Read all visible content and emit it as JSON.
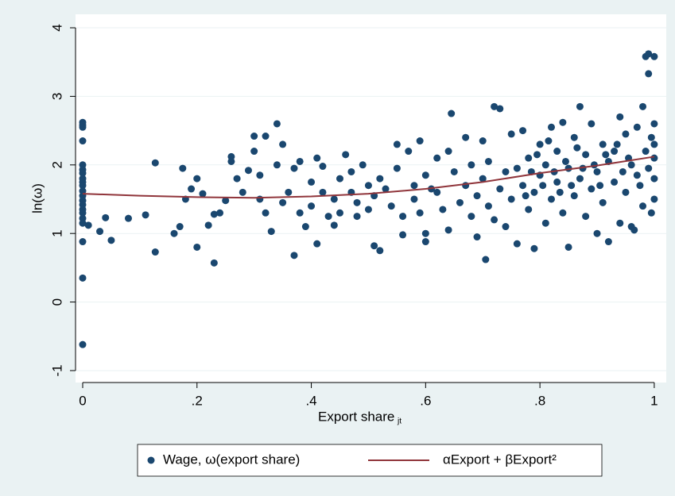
{
  "chart_data": {
    "type": "scatter",
    "x_label": "Export share",
    "x_label_subscript": "jt",
    "y_label": "ln(ω)",
    "xlim": [
      -0.0125,
      1.021
    ],
    "ylim": [
      -1.174,
      4.197
    ],
    "xticks": [
      0,
      {
        "value": 0.2,
        "label": ".2"
      },
      {
        "value": 0.4,
        "label": ".4"
      },
      {
        "value": 0.6,
        "label": ".6"
      },
      {
        "value": 0.8,
        "label": ".8"
      },
      1
    ],
    "yticks": [
      -1,
      0,
      1,
      2,
      3,
      4
    ],
    "grid": true,
    "legend_position": "bottom",
    "series": [
      {
        "name": "Wage, ω(export share)",
        "type": "scatter",
        "color": "#1a476f",
        "x": [
          0,
          0,
          0,
          0,
          0,
          0,
          0,
          0,
          0,
          0,
          0,
          0,
          0,
          0,
          0,
          0,
          0,
          0,
          0,
          0,
          0,
          0.01,
          0.03,
          0.04,
          0.05,
          0.08,
          0.11,
          0.127,
          0.127,
          0.16,
          0.17,
          0.175,
          0.18,
          0.19,
          0.2,
          0.2,
          0.21,
          0.22,
          0.23,
          0.23,
          0.24,
          0.25,
          0.26,
          0.26,
          0.27,
          0.28,
          0.29,
          0.3,
          0.3,
          0.31,
          0.31,
          0.32,
          0.32,
          0.33,
          0.34,
          0.34,
          0.35,
          0.35,
          0.36,
          0.37,
          0.37,
          0.38,
          0.38,
          0.39,
          0.4,
          0.4,
          0.41,
          0.41,
          0.42,
          0.42,
          0.43,
          0.44,
          0.44,
          0.45,
          0.45,
          0.46,
          0.47,
          0.47,
          0.48,
          0.48,
          0.49,
          0.5,
          0.5,
          0.51,
          0.51,
          0.52,
          0.52,
          0.53,
          0.54,
          0.55,
          0.55,
          0.56,
          0.56,
          0.57,
          0.58,
          0.58,
          0.59,
          0.59,
          0.6,
          0.6,
          0.6,
          0.61,
          0.62,
          0.62,
          0.63,
          0.64,
          0.64,
          0.645,
          0.65,
          0.66,
          0.67,
          0.67,
          0.68,
          0.68,
          0.69,
          0.69,
          0.7,
          0.7,
          0.705,
          0.71,
          0.71,
          0.72,
          0.72,
          0.73,
          0.73,
          0.74,
          0.74,
          0.75,
          0.75,
          0.76,
          0.76,
          0.77,
          0.77,
          0.78,
          0.78,
          0.79,
          0.79,
          0.8,
          0.8,
          0.81,
          0.81,
          0.82,
          0.82,
          0.83,
          0.83,
          0.84,
          0.84,
          0.85,
          0.85,
          0.86,
          0.86,
          0.87,
          0.87,
          0.88,
          0.88,
          0.89,
          0.89,
          0.9,
          0.9,
          0.91,
          0.91,
          0.92,
          0.92,
          0.93,
          0.93,
          0.94,
          0.94,
          0.95,
          0.95,
          0.96,
          0.96,
          0.965,
          0.97,
          0.97,
          0.98,
          0.98,
          0.985,
          0.99,
          0.99,
          0.995,
          0.995,
          1,
          1,
          1,
          1,
          1,
          1,
          0.985,
          0.99,
          0.975,
          0.955,
          0.945,
          0.935,
          0.915,
          0.905,
          0.895,
          0.875,
          0.865,
          0.855,
          0.845,
          0.835,
          0.825,
          0.815,
          0.805,
          0.795,
          0.785,
          0.775
        ],
        "values": [
          2.62,
          2.58,
          2.55,
          2.35,
          2.0,
          1.93,
          1.88,
          1.8,
          1.75,
          1.7,
          1.62,
          1.55,
          1.48,
          1.42,
          1.35,
          1.3,
          1.22,
          1.15,
          0.88,
          0.35,
          -0.62,
          1.12,
          1.03,
          1.23,
          0.9,
          1.22,
          1.27,
          2.03,
          0.73,
          1.0,
          1.1,
          1.95,
          1.5,
          1.65,
          1.8,
          0.8,
          1.58,
          1.12,
          0.57,
          1.28,
          1.3,
          1.48,
          2.12,
          2.05,
          1.8,
          1.6,
          1.92,
          2.42,
          2.2,
          1.5,
          1.85,
          1.3,
          2.42,
          1.03,
          2.6,
          2.0,
          1.45,
          2.3,
          1.6,
          1.95,
          0.68,
          1.3,
          2.05,
          1.1,
          1.75,
          1.4,
          2.1,
          0.85,
          1.6,
          1.98,
          1.25,
          1.5,
          1.12,
          1.8,
          1.3,
          2.15,
          1.9,
          1.6,
          1.45,
          1.25,
          2.0,
          1.35,
          1.7,
          1.55,
          0.82,
          1.8,
          0.75,
          1.65,
          1.4,
          2.3,
          1.95,
          1.25,
          0.98,
          2.2,
          1.7,
          1.5,
          2.35,
          1.3,
          1.0,
          1.85,
          0.88,
          1.65,
          1.6,
          2.1,
          1.35,
          2.2,
          1.05,
          2.75,
          1.9,
          1.45,
          2.4,
          1.7,
          1.25,
          2.0,
          1.55,
          0.95,
          2.35,
          1.8,
          0.62,
          1.4,
          2.05,
          2.85,
          1.2,
          2.82,
          1.65,
          1.9,
          1.1,
          2.45,
          1.5,
          1.95,
          0.85,
          1.7,
          2.5,
          1.35,
          2.1,
          1.6,
          0.78,
          2.3,
          1.85,
          1.15,
          2.0,
          1.5,
          2.55,
          1.75,
          2.2,
          1.3,
          2.62,
          0.8,
          1.95,
          2.4,
          1.55,
          2.85,
          1.8,
          1.25,
          2.15,
          1.65,
          2.6,
          1.0,
          1.9,
          2.3,
          1.45,
          0.88,
          2.05,
          1.75,
          2.2,
          1.15,
          2.7,
          1.6,
          2.45,
          1.1,
          2.0,
          1.05,
          2.55,
          1.85,
          2.85,
          1.4,
          3.58,
          3.62,
          3.33,
          2.4,
          1.3,
          3.58,
          2.6,
          2.1,
          1.8,
          1.5,
          2.3,
          2.2,
          1.95,
          1.7,
          2.1,
          1.9,
          2.3,
          2.15,
          1.7,
          2.0,
          1.95,
          2.25,
          1.7,
          2.05,
          1.6,
          1.9,
          2.35,
          1.7,
          2.15,
          1.9,
          1.55
        ]
      },
      {
        "name": "αExport + βExport²",
        "type": "line",
        "color": "#90353b",
        "x": [
          0,
          0.1,
          0.2,
          0.3,
          0.4,
          0.5,
          0.6,
          0.7,
          0.8,
          0.9,
          1
        ],
        "values": [
          1.58,
          1.55,
          1.53,
          1.52,
          1.54,
          1.58,
          1.65,
          1.75,
          1.88,
          1.99,
          2.12
        ]
      }
    ]
  }
}
